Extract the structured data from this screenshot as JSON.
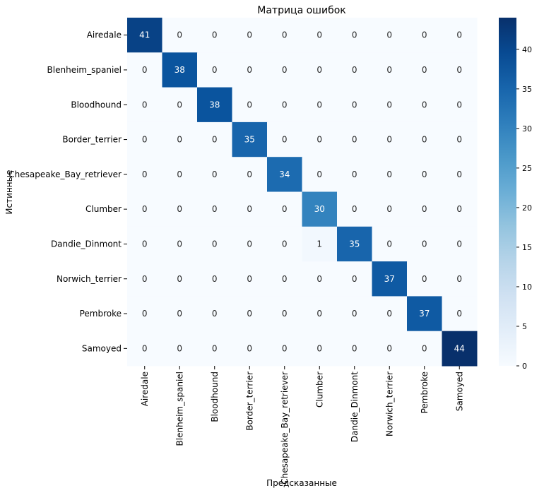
{
  "chart_data": {
    "type": "heatmap",
    "title": "Матрица ошибок",
    "xlabel": "Предсказанные",
    "ylabel": "Истинные",
    "categories": [
      "Airedale",
      "Blenheim_spaniel",
      "Bloodhound",
      "Border_terrier",
      "Chesapeake_Bay_retriever",
      "Clumber",
      "Dandie_Dinmont",
      "Norwich_terrier",
      "Pembroke",
      "Samoyed"
    ],
    "matrix": [
      [
        41,
        0,
        0,
        0,
        0,
        0,
        0,
        0,
        0,
        0
      ],
      [
        0,
        38,
        0,
        0,
        0,
        0,
        0,
        0,
        0,
        0
      ],
      [
        0,
        0,
        38,
        0,
        0,
        0,
        0,
        0,
        0,
        0
      ],
      [
        0,
        0,
        0,
        35,
        0,
        0,
        0,
        0,
        0,
        0
      ],
      [
        0,
        0,
        0,
        0,
        34,
        0,
        0,
        0,
        0,
        0
      ],
      [
        0,
        0,
        0,
        0,
        0,
        30,
        0,
        0,
        0,
        0
      ],
      [
        0,
        0,
        0,
        0,
        0,
        1,
        35,
        0,
        0,
        0
      ],
      [
        0,
        0,
        0,
        0,
        0,
        0,
        0,
        37,
        0,
        0
      ],
      [
        0,
        0,
        0,
        0,
        0,
        0,
        0,
        0,
        37,
        0
      ],
      [
        0,
        0,
        0,
        0,
        0,
        0,
        0,
        0,
        0,
        44
      ]
    ],
    "colorbar": {
      "min": 0,
      "max": 44,
      "ticks": [
        0,
        5,
        10,
        15,
        20,
        25,
        30,
        35,
        40
      ]
    },
    "colormap": "Blues",
    "colors": {
      "low": "#f7fbff",
      "high": "#08306b"
    }
  }
}
